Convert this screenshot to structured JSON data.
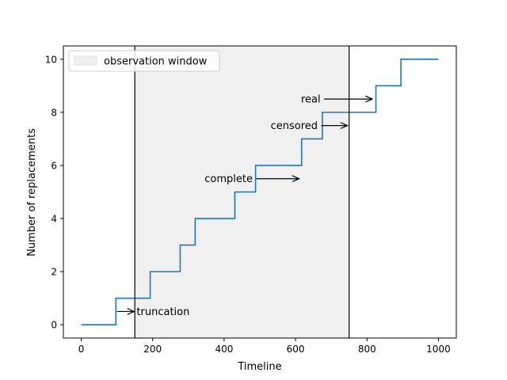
{
  "chart_data": {
    "type": "line",
    "xlabel": "Timeline",
    "ylabel": "Number of replacements",
    "xlim": [
      -50,
      1050
    ],
    "ylim": [
      -0.5,
      10.5
    ],
    "x_ticks": [
      0,
      200,
      400,
      600,
      800,
      1000
    ],
    "y_ticks": [
      0,
      2,
      4,
      6,
      8,
      10
    ],
    "grid": false,
    "legend": {
      "placement": "top-left",
      "entries": [
        "observation window"
      ]
    },
    "observation_window": {
      "start": 150,
      "end": 750,
      "fill": "#f0f0f0"
    },
    "series": [
      {
        "color": "#1f77b4",
        "step": "post",
        "points": [
          [
            0,
            0
          ],
          [
            97,
            1
          ],
          [
            193,
            2
          ],
          [
            277,
            3
          ],
          [
            319,
            4
          ],
          [
            430,
            5
          ],
          [
            488,
            6
          ],
          [
            617,
            7
          ],
          [
            675,
            8
          ],
          [
            825,
            9
          ],
          [
            895,
            10
          ],
          [
            1000,
            10
          ]
        ]
      }
    ],
    "annotations": [
      {
        "label": "truncation",
        "text_xy": [
          155,
          0.5
        ],
        "arrow_from": [
          100,
          0.5
        ],
        "arrow_to": [
          148,
          0.5
        ],
        "align": "start"
      },
      {
        "label": "complete",
        "text_xy": [
          480,
          5.5
        ],
        "arrow_from": [
          490,
          5.5
        ],
        "arrow_to": [
          610,
          5.5
        ],
        "align": "end"
      },
      {
        "label": "censored",
        "text_xy": [
          662,
          7.5
        ],
        "arrow_from": [
          672,
          7.5
        ],
        "arrow_to": [
          745,
          7.5
        ],
        "align": "end"
      },
      {
        "label": "real",
        "text_xy": [
          670,
          8.5
        ],
        "arrow_from": [
          680,
          8.5
        ],
        "arrow_to": [
          815,
          8.5
        ],
        "align": "end"
      }
    ]
  }
}
